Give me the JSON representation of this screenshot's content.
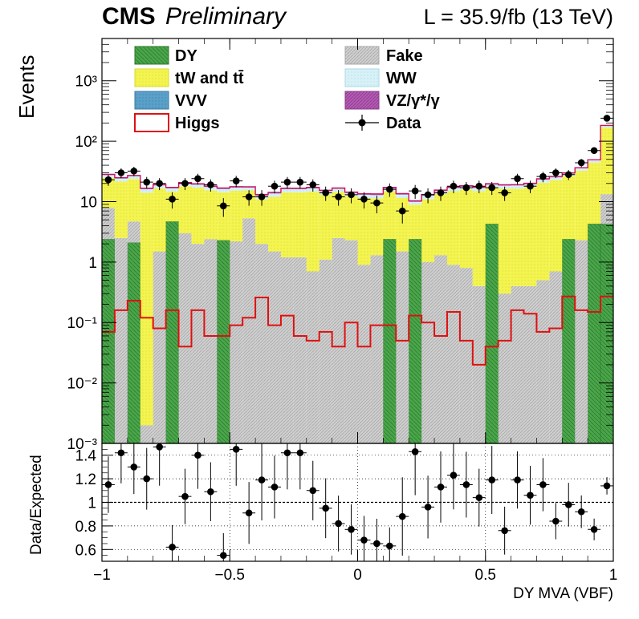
{
  "header": {
    "experiment": "CMS",
    "status": "Preliminary",
    "lumi": "L = 35.9/fb (13 TeV)"
  },
  "axes": {
    "ylabel_main": "Events",
    "ylabel_ratio": "Data/Expected",
    "xlabel": "DY MVA (VBF)",
    "x_ticks": [
      "−1",
      "−0.5",
      "0",
      "0.5",
      "1"
    ],
    "y_ticks_main": [
      "10⁻³",
      "10⁻²",
      "10⁻¹",
      "1",
      "10",
      "10²",
      "10³"
    ],
    "y_ticks_ratio": [
      "0.6",
      "0.8",
      "1",
      "1.2",
      "1.4"
    ]
  },
  "legend": {
    "dy": "DY",
    "fake": "Fake",
    "top": "tW and tt̄",
    "ww": "WW",
    "vvv": "VVV",
    "vz": "VZ/γ*/γ",
    "higgs": "Higgs",
    "data": "Data"
  },
  "colors": {
    "dy": "#4aa64a",
    "fake": "#c8c8c8",
    "top": "#f2f24a",
    "ww": "#cfeef5",
    "vvv": "#5aa0c8",
    "vz": "#b45ab4",
    "higgs": "#e01010",
    "data": "#000000"
  },
  "chart_data": {
    "type": "bar",
    "log_y": true,
    "xlim": [
      -1,
      1
    ],
    "ylim": [
      0.001,
      5000
    ],
    "ratio_ylim": [
      0.5,
      1.5
    ],
    "n_bins": 40,
    "bin_width": 0.05,
    "grid": true,
    "series": [
      {
        "name": "DY",
        "values": [
          2.4,
          0.001,
          2.1,
          0.001,
          0.001,
          4.7,
          0.001,
          0.001,
          0.001,
          2.3,
          0.001,
          0.001,
          0.001,
          0.001,
          0.001,
          0.001,
          0.001,
          0.001,
          0.001,
          0.001,
          0.001,
          0.001,
          2.4,
          0.001,
          2.4,
          0.001,
          0.001,
          0.001,
          0.001,
          0.001,
          4.3,
          0.001,
          0.001,
          0.001,
          0.001,
          0.001,
          2.4,
          0.001,
          4.3,
          4.3
        ]
      },
      {
        "name": "Fake",
        "values": [
          5.5,
          2.5,
          2.6,
          0.001,
          1.5,
          0.001,
          3.0,
          2.0,
          2.4,
          0.001,
          2.2,
          5.3,
          2.0,
          1.5,
          1.2,
          1.2,
          0.7,
          1.1,
          2.5,
          2.3,
          0.9,
          1.3,
          0.001,
          1.5,
          0.001,
          1.0,
          1.3,
          0.9,
          0.8,
          0.4,
          0.001,
          0.3,
          0.4,
          0.4,
          0.5,
          0.7,
          0.001,
          2.3,
          0.001,
          9.0
        ]
      },
      {
        "name": "tW and tt̄",
        "values": [
          17.0,
          19.0,
          19.0,
          14.0,
          15.0,
          10.0,
          15.0,
          15.0,
          13.0,
          12.0,
          13.0,
          10.0,
          9.0,
          10.5,
          13.0,
          13.0,
          14.0,
          12.0,
          12.0,
          10.0,
          10.5,
          10.0,
          12.5,
          10.0,
          6.5,
          10.0,
          12.0,
          14.0,
          15.0,
          14.5,
          13.0,
          16.0,
          16.0,
          17.0,
          20.0,
          22.0,
          24.0,
          30.0,
          40.0,
          155.0
        ]
      },
      {
        "name": "WW",
        "values": [
          2.5,
          2.5,
          2.5,
          2.0,
          2.0,
          1.8,
          2.0,
          2.0,
          2.0,
          1.8,
          1.8,
          1.7,
          1.5,
          1.6,
          1.8,
          1.8,
          1.8,
          1.7,
          1.7,
          1.5,
          1.5,
          1.5,
          1.6,
          1.5,
          1.0,
          1.5,
          1.6,
          1.8,
          1.8,
          1.8,
          1.8,
          2.0,
          2.0,
          2.0,
          2.5,
          2.5,
          2.5,
          3.0,
          3.5,
          10.0
        ]
      },
      {
        "name": "VVV",
        "values": [
          0.3,
          0.3,
          0.3,
          0.2,
          0.2,
          0.2,
          0.2,
          0.2,
          0.2,
          0.2,
          0.2,
          0.2,
          0.2,
          0.2,
          0.2,
          0.2,
          0.2,
          0.2,
          0.2,
          0.2,
          0.2,
          0.2,
          0.2,
          0.2,
          0.1,
          0.2,
          0.2,
          0.2,
          0.2,
          0.2,
          0.2,
          0.2,
          0.2,
          0.2,
          0.3,
          0.3,
          0.3,
          0.3,
          0.4,
          1.0
        ]
      },
      {
        "name": "VZ/γ*/γ",
        "values": [
          0.6,
          0.6,
          0.6,
          0.5,
          0.5,
          0.5,
          0.5,
          0.5,
          0.5,
          0.5,
          0.5,
          0.4,
          0.4,
          0.4,
          0.5,
          0.5,
          0.5,
          0.4,
          0.4,
          0.4,
          0.4,
          0.4,
          0.5,
          0.4,
          0.3,
          0.4,
          0.4,
          0.5,
          0.5,
          0.5,
          0.5,
          0.5,
          0.5,
          0.5,
          0.6,
          0.6,
          0.7,
          0.8,
          1.0,
          3.0
        ]
      },
      {
        "name": "Higgs",
        "values": [
          0.07,
          0.16,
          0.23,
          0.12,
          0.08,
          0.16,
          0.04,
          0.16,
          0.06,
          0.06,
          0.09,
          0.12,
          0.26,
          0.09,
          0.13,
          0.06,
          0.05,
          0.07,
          0.04,
          0.1,
          0.04,
          0.09,
          0.09,
          0.05,
          0.13,
          0.1,
          0.06,
          0.15,
          0.05,
          0.02,
          0.04,
          0.05,
          0.16,
          0.14,
          0.07,
          0.08,
          0.27,
          0.16,
          0.15,
          0.27
        ]
      }
    ],
    "data": [
      23,
      30,
      32,
      21,
      20,
      11,
      20,
      24,
      19,
      8.5,
      22,
      12,
      12,
      18,
      21,
      21,
      19,
      14,
      12,
      13,
      11,
      9.5,
      16,
      7,
      15,
      13,
      14,
      18,
      17,
      18,
      17,
      14,
      24,
      18,
      26,
      30,
      28,
      44,
      70,
      240
    ],
    "ratio": [
      1.15,
      1.42,
      1.3,
      1.2,
      1.47,
      0.62,
      1.05,
      1.4,
      1.09,
      0.55,
      1.45,
      0.91,
      1.19,
      1.13,
      1.42,
      1.42,
      1.1,
      0.95,
      0.82,
      0.77,
      0.68,
      0.65,
      0.63,
      0.88,
      1.43,
      0.96,
      1.13,
      1.23,
      1.15,
      1.04,
      1.19,
      0.76,
      1.19,
      1.06,
      1.15,
      0.84,
      0.98,
      0.92,
      0.77,
      1.14
    ]
  }
}
